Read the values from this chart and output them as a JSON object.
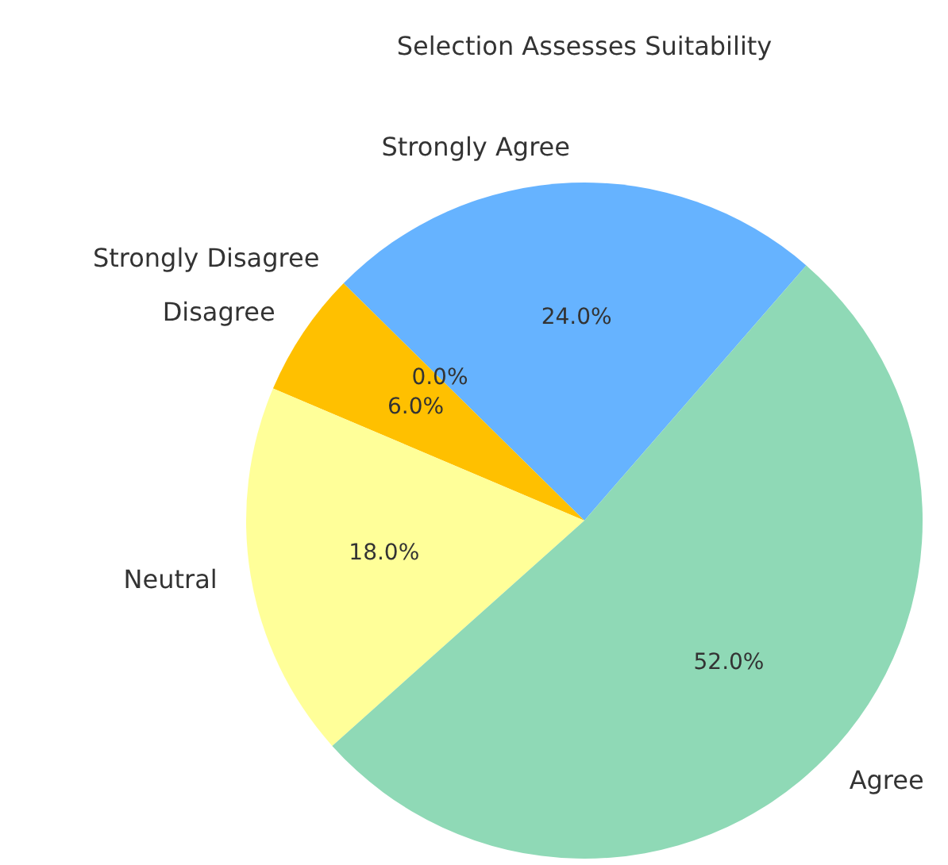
{
  "chart_data": {
    "type": "pie",
    "title": "Selection Assesses Suitability",
    "categories": [
      "Strongly Agree",
      "Strongly Disagree",
      "Disagree",
      "Neutral",
      "Agree"
    ],
    "values": [
      24,
      0,
      6,
      18,
      52
    ],
    "colors": [
      "#66b3ff",
      "#ff9999",
      "#ffc000",
      "#ffff99",
      "#8fd9b6"
    ],
    "value_labels": [
      "24.0%",
      "0.0%",
      "6.0%",
      "18.0%",
      "52.0%"
    ]
  }
}
